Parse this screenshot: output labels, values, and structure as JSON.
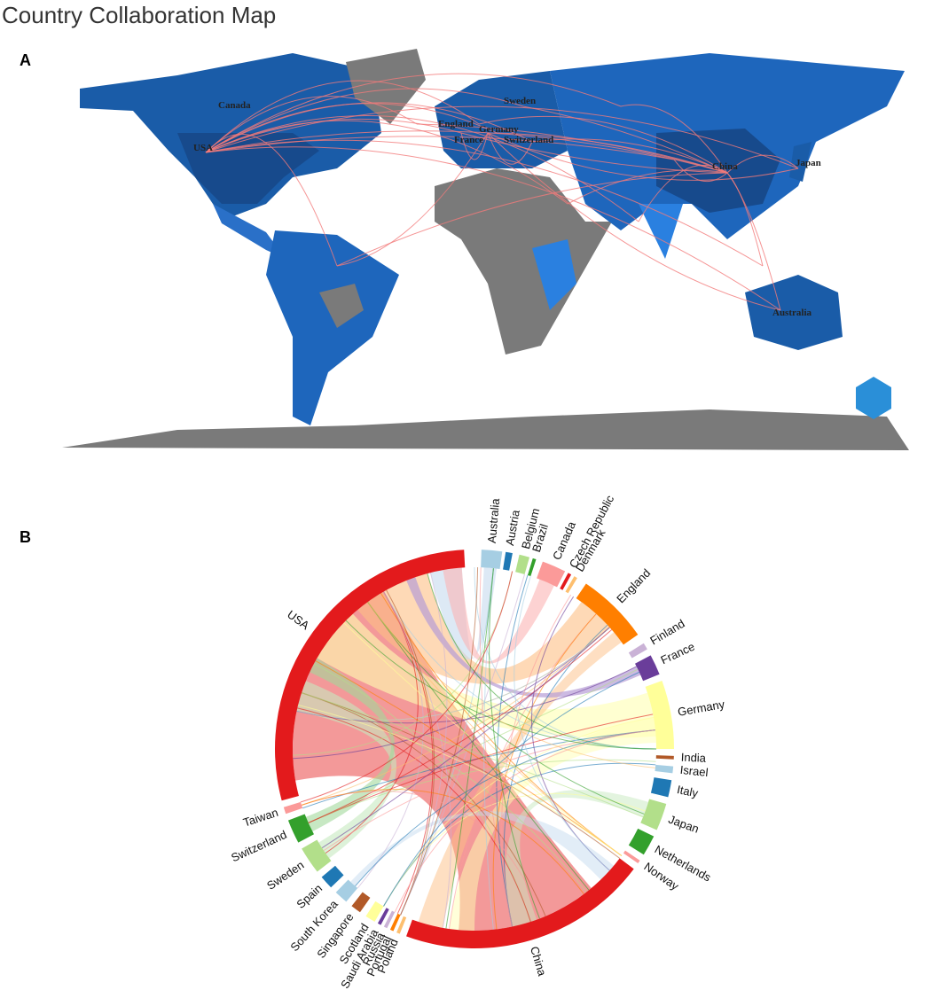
{
  "header": {
    "title": "Country Collaboration Map"
  },
  "panels": [
    {
      "label": "A",
      "map_labels": [
        "Canada",
        "USA",
        "England",
        "Sweden",
        "Germany",
        "France",
        "Switzerland",
        "China",
        "Japan",
        "Australia"
      ]
    },
    {
      "label": "B",
      "chord_labels": [
        "Australia",
        "Austria",
        "Belgium",
        "Brazil",
        "Canada",
        "Czech Republic",
        "Denmark",
        "England",
        "Finland",
        "France",
        "Germany",
        "India",
        "Israel",
        "Italy",
        "Japan",
        "Netherlands",
        "Norway",
        "China",
        "Poland",
        "Portugal",
        "Russia",
        "Saudi Arabia",
        "Scotland",
        "Singapore",
        "South Korea",
        "Spain",
        "Sweden",
        "Switzerland",
        "Taiwan",
        "USA"
      ]
    }
  ]
}
